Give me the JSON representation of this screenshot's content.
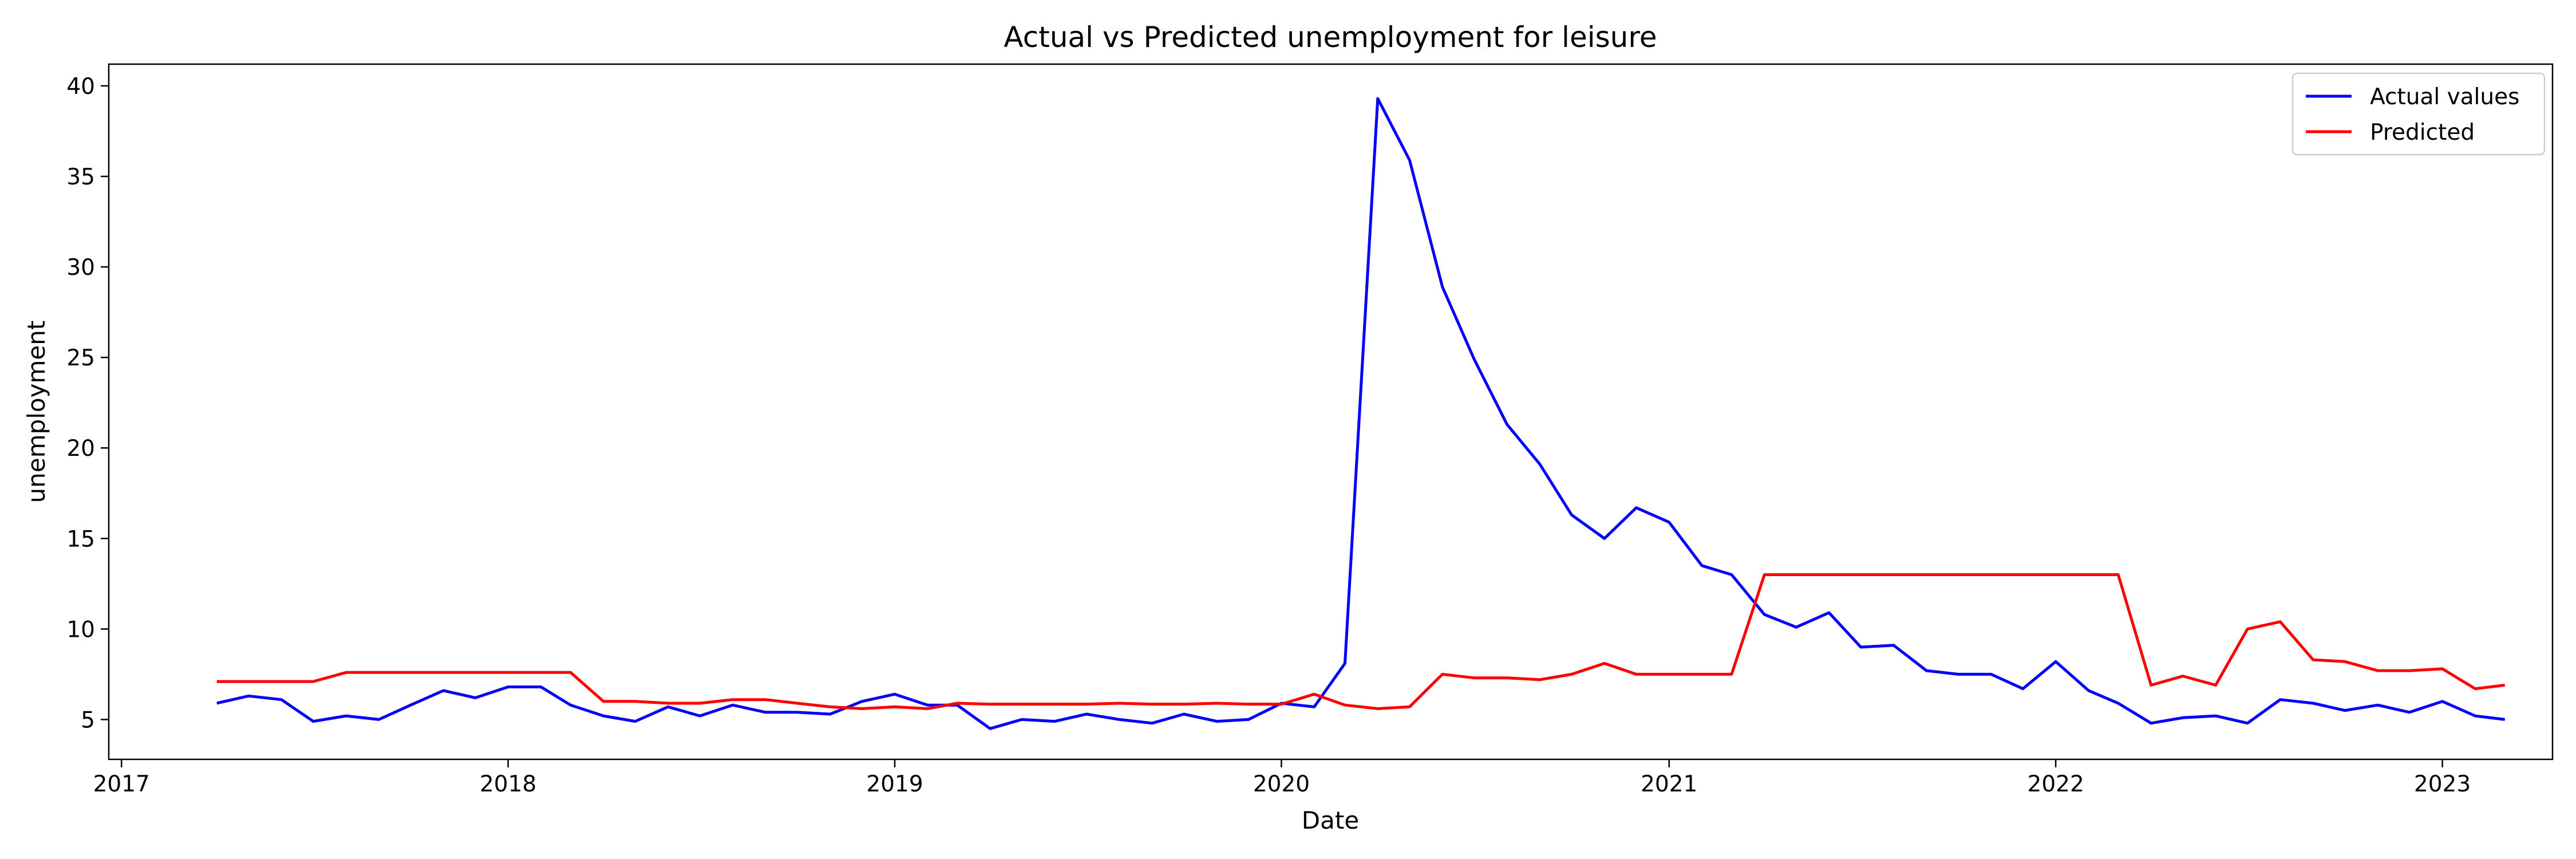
{
  "chart_data": {
    "type": "line",
    "title": "Actual vs Predicted unemployment for leisure",
    "xlabel": "Date",
    "ylabel": "unemployment",
    "x_tick_labels": [
      "2017",
      "2018",
      "2019",
      "2020",
      "2021",
      "2022",
      "2023"
    ],
    "y_ticks": [
      5,
      10,
      15,
      20,
      25,
      30,
      35,
      40
    ],
    "xlim": [
      "2016-12-20",
      "2023-04-15"
    ],
    "ylim": [
      2.8,
      41.2
    ],
    "grid": false,
    "legend_position": "top-right",
    "x": [
      "2017-04",
      "2017-05",
      "2017-06",
      "2017-07",
      "2017-08",
      "2017-09",
      "2017-10",
      "2017-11",
      "2017-12",
      "2018-01",
      "2018-02",
      "2018-03",
      "2018-04",
      "2018-05",
      "2018-06",
      "2018-07",
      "2018-08",
      "2018-09",
      "2018-10",
      "2018-11",
      "2018-12",
      "2019-01",
      "2019-02",
      "2019-03",
      "2019-04",
      "2019-05",
      "2019-06",
      "2019-07",
      "2019-08",
      "2019-09",
      "2019-10",
      "2019-11",
      "2019-12",
      "2020-01",
      "2020-02",
      "2020-03",
      "2020-04",
      "2020-05",
      "2020-06",
      "2020-07",
      "2020-08",
      "2020-09",
      "2020-10",
      "2020-11",
      "2020-12",
      "2021-01",
      "2021-02",
      "2021-03",
      "2021-04",
      "2021-05",
      "2021-06",
      "2021-07",
      "2021-08",
      "2021-09",
      "2021-10",
      "2021-11",
      "2021-12",
      "2022-01",
      "2022-02",
      "2022-03",
      "2022-04",
      "2022-05",
      "2022-06",
      "2022-07",
      "2022-08",
      "2022-09",
      "2022-10",
      "2022-11",
      "2022-12",
      "2023-01",
      "2023-02",
      "2023-03"
    ],
    "series": [
      {
        "name": "Actual values",
        "color": "#0000ff",
        "values": [
          5.9,
          6.3,
          6.1,
          4.9,
          5.2,
          5.0,
          5.8,
          6.6,
          6.2,
          6.8,
          6.8,
          5.8,
          5.2,
          4.9,
          5.7,
          5.2,
          5.8,
          5.4,
          5.4,
          5.3,
          6.0,
          6.4,
          5.8,
          5.8,
          4.5,
          5.0,
          4.9,
          5.3,
          5.0,
          4.8,
          5.3,
          4.9,
          5.0,
          5.9,
          5.7,
          8.1,
          39.3,
          35.9,
          28.9,
          24.9,
          21.3,
          19.1,
          16.3,
          15.0,
          16.7,
          15.9,
          13.5,
          13.0,
          10.8,
          10.1,
          10.9,
          9.0,
          9.1,
          7.7,
          7.5,
          7.5,
          6.7,
          8.2,
          6.6,
          5.9,
          4.8,
          5.1,
          5.2,
          4.8,
          6.1,
          5.9,
          5.5,
          5.8,
          5.4,
          6.0,
          5.2,
          5.0
        ]
      },
      {
        "name": "Predicted",
        "color": "#ff0000",
        "values": [
          7.1,
          7.1,
          7.1,
          7.1,
          7.6,
          7.6,
          7.6,
          7.6,
          7.6,
          7.6,
          7.6,
          7.6,
          6.0,
          6.0,
          5.9,
          5.9,
          6.1,
          6.1,
          5.9,
          5.7,
          5.6,
          5.7,
          5.6,
          5.9,
          5.85,
          5.85,
          5.85,
          5.85,
          5.9,
          5.85,
          5.85,
          5.9,
          5.85,
          5.85,
          6.4,
          5.8,
          5.6,
          5.7,
          7.5,
          7.3,
          7.3,
          7.2,
          7.5,
          8.1,
          7.5,
          7.5,
          7.5,
          7.5,
          13.0,
          13.0,
          13.0,
          13.0,
          13.0,
          13.0,
          13.0,
          13.0,
          13.0,
          13.0,
          13.0,
          13.0,
          6.9,
          7.4,
          6.9,
          10.0,
          10.4,
          8.3,
          8.2,
          7.7,
          7.7,
          7.8,
          6.7,
          6.9
        ]
      }
    ]
  }
}
